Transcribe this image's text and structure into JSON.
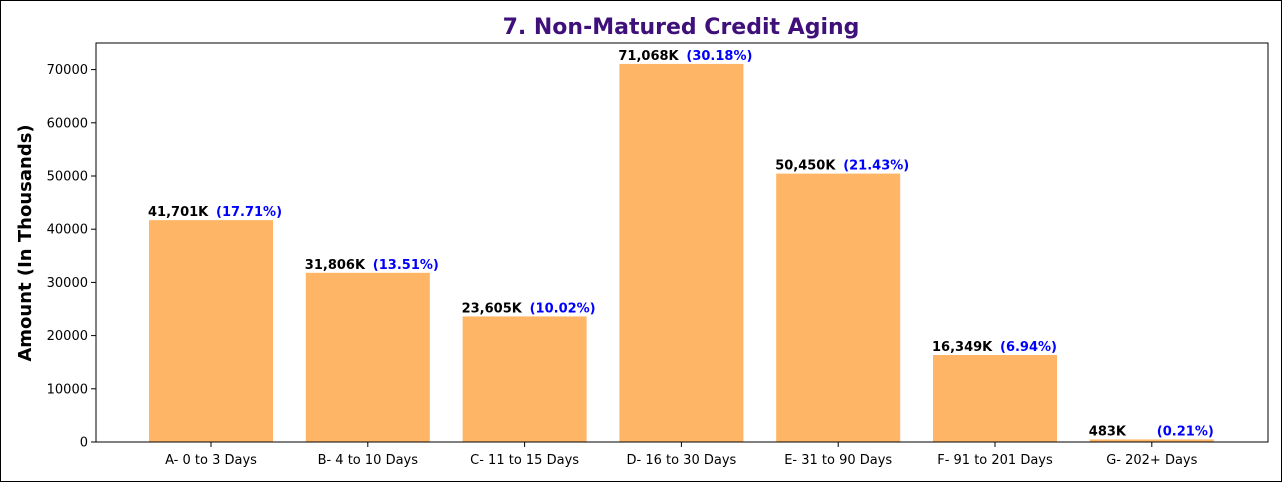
{
  "chart_data": {
    "type": "bar",
    "title": "7. Non-Matured Credit Aging",
    "xlabel": "",
    "ylabel": "Amount (In Thousands)",
    "ylim": [
      0,
      75000
    ],
    "yticks": [
      0,
      10000,
      20000,
      30000,
      40000,
      50000,
      60000,
      70000
    ],
    "categories": [
      "A- 0 to 3 Days",
      "B- 4 to 10 Days",
      "C- 11 to 15 Days",
      "D- 16 to 30 Days",
      "E- 31 to 90 Days",
      "F- 91 to 201 Days",
      "G- 202+ Days"
    ],
    "values": [
      41701,
      31806,
      23605,
      71068,
      50450,
      16349,
      483
    ],
    "value_labels": [
      "41,701K",
      "31,806K",
      "23,605K",
      "71,068K",
      "50,450K",
      "16,349K",
      "483K"
    ],
    "percent_labels": [
      "(17.71%)",
      "(13.51%)",
      "(10.02%)",
      "(30.18%)",
      "(21.43%)",
      "(6.94%)",
      "(0.21%)"
    ],
    "grid": false,
    "colors": {
      "bar": "#ffb566",
      "title": "#3f0f7a",
      "percent": "#0000ff",
      "axis": "#000000"
    }
  }
}
